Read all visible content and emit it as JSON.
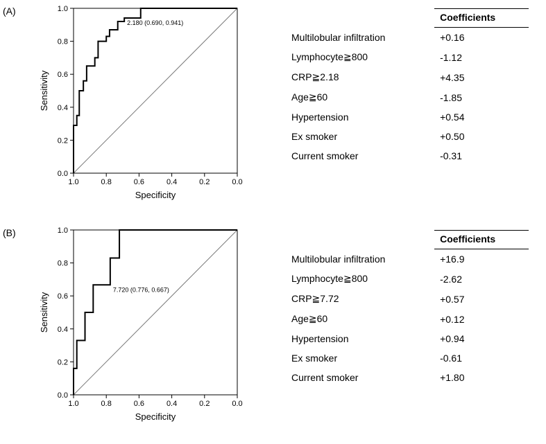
{
  "panels": {
    "A": {
      "label": "(A)",
      "chart": {
        "type": "roc",
        "xlabel": "Specificity",
        "ylabel": "Sensitivity",
        "xlim": [
          1.0,
          0.0
        ],
        "ylim": [
          0.0,
          1.0
        ],
        "xticks": [
          1.0,
          0.8,
          0.6,
          0.4,
          0.2,
          0.0
        ],
        "yticks": [
          0.0,
          0.2,
          0.4,
          0.6,
          0.8,
          1.0
        ],
        "grid_color": "#777777",
        "background_color": "#ffffff",
        "line_color": "#000000",
        "line_width": 2,
        "diagonal_color": "#7a7a7a",
        "diagonal_width": 1,
        "font_family": "Arial",
        "axis_title_fontsize": 13,
        "tick_fontsize": 11,
        "point_label": "2.180 (0.690, 0.941)",
        "point_label_fontsize": 9,
        "point_xy": [
          0.69,
          0.941
        ],
        "roc_points": [
          [
            1.0,
            0.0
          ],
          [
            1.0,
            0.29
          ],
          [
            0.98,
            0.29
          ],
          [
            0.98,
            0.35
          ],
          [
            0.965,
            0.35
          ],
          [
            0.965,
            0.5
          ],
          [
            0.94,
            0.5
          ],
          [
            0.94,
            0.56
          ],
          [
            0.92,
            0.56
          ],
          [
            0.92,
            0.65
          ],
          [
            0.87,
            0.65
          ],
          [
            0.87,
            0.7
          ],
          [
            0.85,
            0.7
          ],
          [
            0.85,
            0.8
          ],
          [
            0.8,
            0.8
          ],
          [
            0.8,
            0.83
          ],
          [
            0.78,
            0.83
          ],
          [
            0.78,
            0.87
          ],
          [
            0.73,
            0.87
          ],
          [
            0.73,
            0.92
          ],
          [
            0.69,
            0.92
          ],
          [
            0.69,
            0.941
          ],
          [
            0.59,
            0.941
          ],
          [
            0.59,
            1.0
          ],
          [
            0.0,
            1.0
          ]
        ]
      },
      "table": {
        "header": [
          "",
          "Coefficients"
        ],
        "rows": [
          [
            "Multilobular infiltration",
            "+0.16"
          ],
          [
            "Lymphocyte≧800",
            "-1.12"
          ],
          [
            "CRP≧2.18",
            "+4.35"
          ],
          [
            "Age≧60",
            "-1.85"
          ],
          [
            "Hypertension",
            "+0.54"
          ],
          [
            "Ex smoker",
            "+0.50"
          ],
          [
            "Current smoker",
            "-0.31"
          ]
        ],
        "columns_align": [
          "left",
          "left"
        ],
        "font_size": 14,
        "border_color": "#000000"
      }
    },
    "B": {
      "label": "(B)",
      "chart": {
        "type": "roc",
        "xlabel": "Specificity",
        "ylabel": "Sensitivity",
        "xlim": [
          1.0,
          0.0
        ],
        "ylim": [
          0.0,
          1.0
        ],
        "xticks": [
          1.0,
          0.8,
          0.6,
          0.4,
          0.2,
          0.0
        ],
        "yticks": [
          0.0,
          0.2,
          0.4,
          0.6,
          0.8,
          1.0
        ],
        "grid_color": "#777777",
        "background_color": "#ffffff",
        "line_color": "#000000",
        "line_width": 2,
        "diagonal_color": "#7a7a7a",
        "diagonal_width": 1,
        "font_family": "Arial",
        "axis_title_fontsize": 13,
        "tick_fontsize": 11,
        "point_label": "7.720 (0.776, 0.667)",
        "point_label_fontsize": 9,
        "point_xy": [
          0.776,
          0.667
        ],
        "roc_points": [
          [
            1.0,
            0.0
          ],
          [
            1.0,
            0.16
          ],
          [
            0.98,
            0.16
          ],
          [
            0.98,
            0.33
          ],
          [
            0.93,
            0.33
          ],
          [
            0.93,
            0.5
          ],
          [
            0.88,
            0.5
          ],
          [
            0.88,
            0.667
          ],
          [
            0.776,
            0.667
          ],
          [
            0.776,
            0.83
          ],
          [
            0.72,
            0.83
          ],
          [
            0.72,
            1.0
          ],
          [
            0.42,
            1.0
          ],
          [
            0.0,
            1.0
          ]
        ]
      },
      "table": {
        "header": [
          "",
          "Coefficients"
        ],
        "rows": [
          [
            "Multilobular infiltration",
            "+16.9"
          ],
          [
            "Lymphocyte≧800",
            "-2.62"
          ],
          [
            "CRP≧7.72",
            "+0.57"
          ],
          [
            "Age≧60",
            "+0.12"
          ],
          [
            "Hypertension",
            "+0.94"
          ],
          [
            "Ex smoker",
            "-0.61"
          ],
          [
            "Current smoker",
            "+1.80"
          ]
        ],
        "columns_align": [
          "left",
          "left"
        ],
        "font_size": 14,
        "border_color": "#000000"
      }
    }
  }
}
